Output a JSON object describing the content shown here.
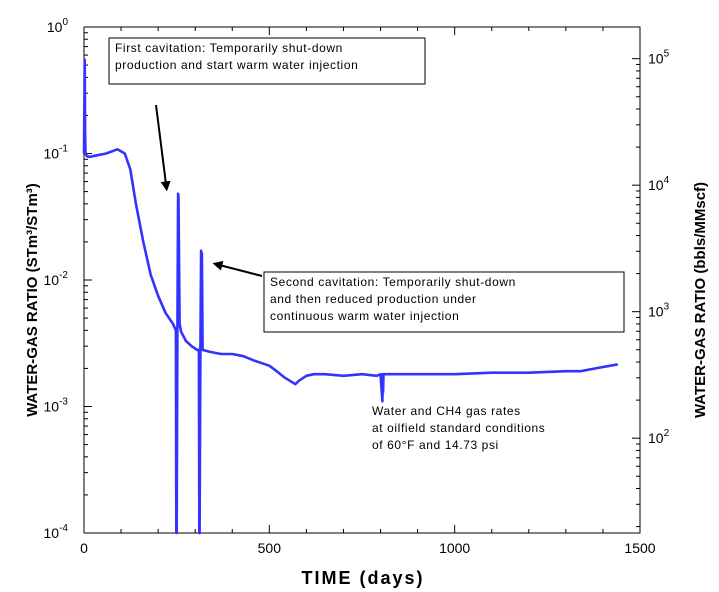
{
  "chart_data": {
    "type": "line",
    "xlabel": "TIME (days)",
    "ylabel": "WATER-GAS RATIO (STm³/STm³)",
    "y2label": "WATER-GAS RATIO (bbls/MMscf)",
    "xlim": [
      0,
      1500
    ],
    "ylim": [
      0.0001,
      1
    ],
    "y2lim": [
      17.8,
      178000
    ],
    "yscale": "log",
    "grid": false,
    "legend": "none",
    "x_ticks": [
      {
        "value": 0,
        "label": "0"
      },
      {
        "value": 500,
        "label": "500"
      },
      {
        "value": 1000,
        "label": "1000"
      },
      {
        "value": 1500,
        "label": "1500"
      }
    ],
    "y_ticks": [
      {
        "value": 1,
        "base": "10",
        "exp": "0"
      },
      {
        "value": 0.1,
        "base": "10",
        "exp": "-1"
      },
      {
        "value": 0.01,
        "base": "10",
        "exp": "-2"
      },
      {
        "value": 0.001,
        "base": "10",
        "exp": "-3"
      },
      {
        "value": 0.0001,
        "base": "10",
        "exp": "-4"
      }
    ],
    "y2_ticks": [
      {
        "value": 100000,
        "base": "10",
        "exp": "5"
      },
      {
        "value": 10000,
        "base": "10",
        "exp": "4"
      },
      {
        "value": 1000,
        "base": "10",
        "exp": "3"
      },
      {
        "value": 100,
        "base": "10",
        "exp": "2"
      }
    ],
    "series": [
      {
        "color": "#3333ff",
        "x": [
          0,
          2,
          3,
          4,
          8,
          15,
          30,
          60,
          90,
          110,
          125,
          140,
          160,
          180,
          200,
          220,
          240,
          248,
          249,
          250,
          252,
          254,
          255,
          258,
          262,
          275,
          290,
          305,
          310,
          311,
          312,
          314,
          316,
          318,
          320,
          340,
          370,
          400,
          430,
          460,
          480,
          500,
          520,
          540,
          555,
          570,
          580,
          600,
          620,
          650,
          700,
          750,
          790,
          800,
          805,
          806,
          807,
          808,
          812,
          830,
          900,
          1000,
          1100,
          1200,
          1300,
          1340,
          1380,
          1420,
          1440
        ],
        "y": [
          0.1,
          0.55,
          0.15,
          0.1,
          0.095,
          0.094,
          0.096,
          0.1,
          0.108,
          0.1,
          0.075,
          0.04,
          0.02,
          0.011,
          0.0075,
          0.0055,
          0.0045,
          0.004,
          0.0001,
          0.0001,
          0.004,
          0.048,
          0.045,
          0.0045,
          0.0039,
          0.0033,
          0.003,
          0.0028,
          0.0028,
          0.0001,
          0.0001,
          0.0028,
          0.017,
          0.016,
          0.0028,
          0.0027,
          0.0026,
          0.0026,
          0.0025,
          0.0023,
          0.0022,
          0.0021,
          0.0019,
          0.0017,
          0.0016,
          0.0015,
          0.0016,
          0.00175,
          0.0018,
          0.0018,
          0.00175,
          0.0018,
          0.00175,
          0.0018,
          0.0011,
          0.0018,
          0.0013,
          0.0018,
          0.0018,
          0.0018,
          0.0018,
          0.0018,
          0.00185,
          0.00185,
          0.0019,
          0.0019,
          0.002,
          0.0021,
          0.00215
        ]
      }
    ],
    "annotations": [
      {
        "name": "first-cavitation",
        "lines": [
          "First cavitation: Temporarily shut-down",
          "production and start warm water injection"
        ],
        "boxed": true,
        "arrow_to": [
          250,
          0.045
        ]
      },
      {
        "name": "second-cavitation",
        "lines": [
          "Second cavitation: Temporarily shut-down",
          "and then reduced production under",
          "continuous warm water injection"
        ],
        "boxed": true,
        "arrow_to": [
          325,
          0.015
        ]
      },
      {
        "name": "rates-note",
        "lines": [
          "Water and CH4 gas rates",
          "at oilfield standard conditions",
          "of 60°F and 14.73 psi"
        ],
        "boxed": false
      }
    ]
  }
}
